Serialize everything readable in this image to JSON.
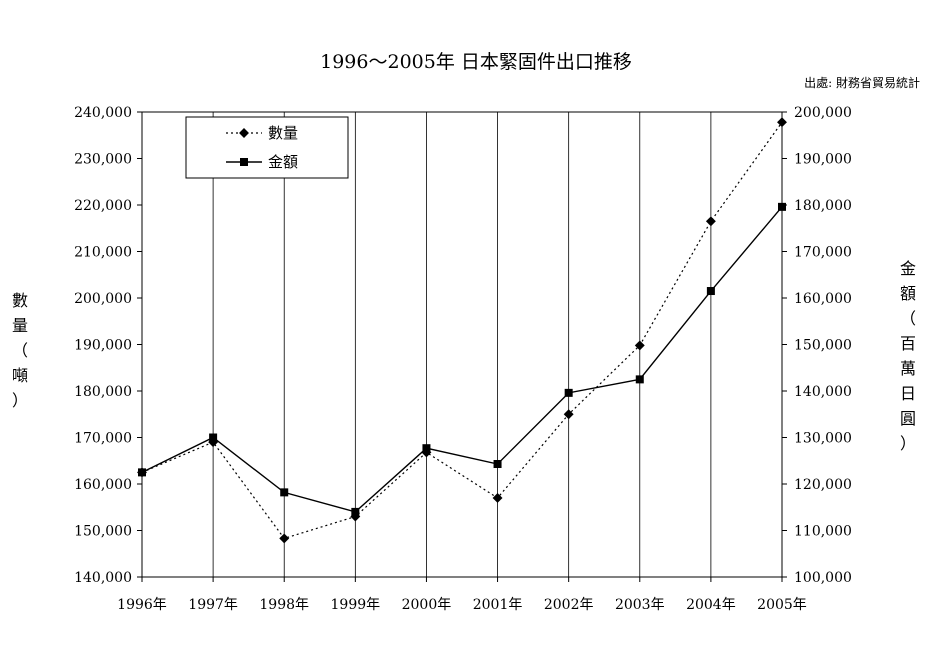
{
  "chart_data": {
    "type": "line",
    "title": "1996～2005年 日本緊固件出口推移",
    "source": "出處: 財務省貿易統計",
    "categories": [
      "1996年",
      "1997年",
      "1998年",
      "1999年",
      "2000年",
      "2001年",
      "2002年",
      "2003年",
      "2004年",
      "2005年"
    ],
    "ylabel_left": "數量（噸）",
    "ylabel_right": "金額（百萬日圓）",
    "ylim_left": [
      140000,
      240000
    ],
    "ylim_right": [
      100000,
      200000
    ],
    "yticks_left": [
      "140,000",
      "150,000",
      "160,000",
      "170,000",
      "180,000",
      "190,000",
      "200,000",
      "210,000",
      "220,000",
      "230,000",
      "240,000"
    ],
    "yticks_right": [
      "100,000",
      "110,000",
      "120,000",
      "130,000",
      "140,000",
      "150,000",
      "160,000",
      "170,000",
      "180,000",
      "190,000",
      "200,000"
    ],
    "grid": "vertical",
    "legend_position": "top-left",
    "series": [
      {
        "name": "數量",
        "axis": "left",
        "style": "dotted",
        "marker": "diamond",
        "values": [
          162500,
          169000,
          148300,
          153000,
          166800,
          157000,
          175000,
          189800,
          216500,
          237800
        ]
      },
      {
        "name": "金額",
        "axis": "right",
        "style": "solid",
        "marker": "square",
        "values": [
          122500,
          130000,
          118200,
          114000,
          127700,
          124300,
          139600,
          142500,
          161500,
          179600
        ]
      }
    ]
  }
}
